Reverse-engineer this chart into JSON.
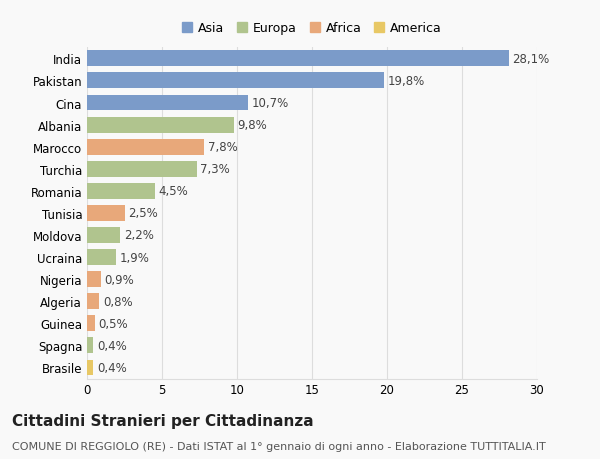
{
  "countries": [
    "India",
    "Pakistan",
    "Cina",
    "Albania",
    "Marocco",
    "Turchia",
    "Romania",
    "Tunisia",
    "Moldova",
    "Ucraina",
    "Nigeria",
    "Algeria",
    "Guinea",
    "Spagna",
    "Brasile"
  ],
  "values": [
    28.1,
    19.8,
    10.7,
    9.8,
    7.8,
    7.3,
    4.5,
    2.5,
    2.2,
    1.9,
    0.9,
    0.8,
    0.5,
    0.4,
    0.4
  ],
  "labels": [
    "28,1%",
    "19,8%",
    "10,7%",
    "9,8%",
    "7,8%",
    "7,3%",
    "4,5%",
    "2,5%",
    "2,2%",
    "1,9%",
    "0,9%",
    "0,8%",
    "0,5%",
    "0,4%",
    "0,4%"
  ],
  "colors": [
    "#7b9bc9",
    "#7b9bc9",
    "#7b9bc9",
    "#b0c48e",
    "#e8a87a",
    "#b0c48e",
    "#b0c48e",
    "#e8a87a",
    "#b0c48e",
    "#b0c48e",
    "#e8a87a",
    "#e8a87a",
    "#e8a87a",
    "#b0c48e",
    "#e8c865"
  ],
  "legend_labels": [
    "Asia",
    "Europa",
    "Africa",
    "America"
  ],
  "legend_colors": [
    "#7b9bc9",
    "#b0c48e",
    "#e8a87a",
    "#e8c865"
  ],
  "xlim": [
    0,
    30
  ],
  "xticks": [
    0,
    5,
    10,
    15,
    20,
    25,
    30
  ],
  "title": "Cittadini Stranieri per Cittadinanza",
  "subtitle": "COMUNE DI REGGIOLO (RE) - Dati ISTAT al 1° gennaio di ogni anno - Elaborazione TUTTITALIA.IT",
  "bg_color": "#f9f9f9",
  "grid_color": "#dddddd",
  "bar_height": 0.72,
  "label_fontsize": 8.5,
  "tick_fontsize": 8.5,
  "title_fontsize": 11,
  "subtitle_fontsize": 8
}
